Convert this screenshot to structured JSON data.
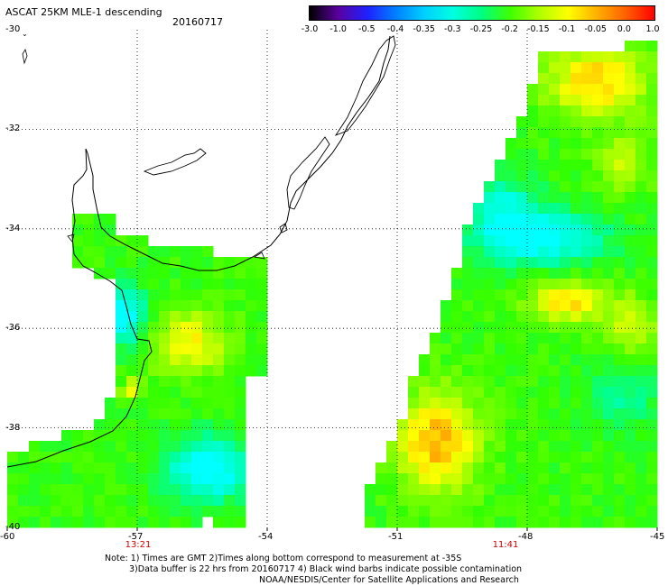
{
  "header": {
    "title": "ASCAT 25KM MLE-1 descending",
    "date": "20160717"
  },
  "colorbar": {
    "labels": [
      "-3.0",
      "-1.0",
      "-0.5",
      "-0.4",
      "-0.35",
      "-0.3",
      "-0.25",
      "-0.2",
      "-0.15",
      "-0.1",
      "-0.05",
      "0.0",
      "1.0"
    ],
    "colors": [
      "#000000",
      "#5a00a0",
      "#2020ff",
      "#0080ff",
      "#00d0ff",
      "#00ffe0",
      "#00ff80",
      "#40ff00",
      "#b0ff00",
      "#ffff00",
      "#ffb000",
      "#ff6000",
      "#ff0000"
    ]
  },
  "axes": {
    "lat_labels": [
      "-30",
      "-32",
      "-34",
      "-36",
      "-38",
      "-40"
    ],
    "lon_labels": [
      "-60",
      "-57",
      "-54",
      "-51",
      "-48",
      "-45"
    ]
  },
  "times": {
    "left_swath": "13:21",
    "right_swath": "11:41"
  },
  "note": {
    "line1": "Note: 1) Times are GMT 2)Times along bottom correspond to measurement at -35S",
    "line2": "3)Data buffer is 22 hrs from 20160717 4) Black wind barbs indicate possible contamination",
    "line3": "NOAA/NESDIS/Center for Satellite Applications and Research"
  }
}
